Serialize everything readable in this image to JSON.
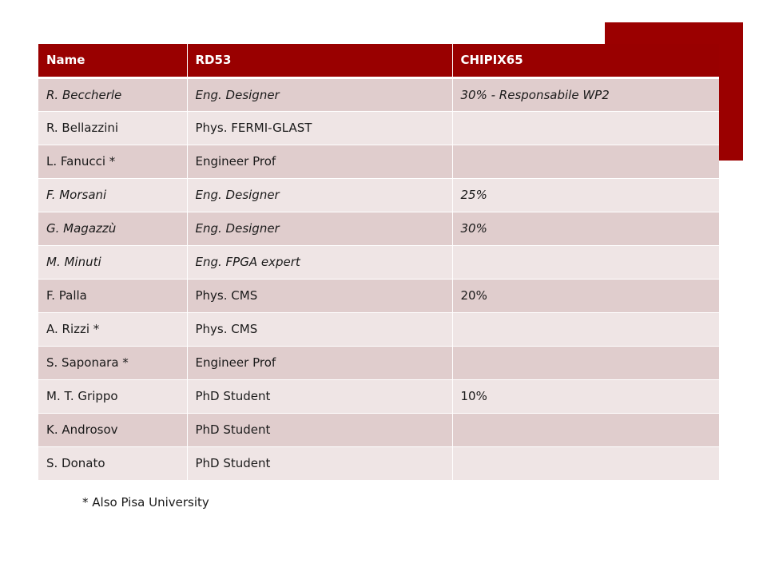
{
  "colors": {
    "header_bg": "#990000",
    "row_odd": "#e0cdcd",
    "row_even": "#efe5e5",
    "accent_block": "#9b0000"
  },
  "table": {
    "headers": [
      "Name",
      "RD53",
      "CHIPIX65"
    ],
    "rows": [
      {
        "cells": [
          "R. Beccherle",
          "Eng. Designer",
          "30% - Responsabile WP2"
        ],
        "italic": true
      },
      {
        "cells": [
          "R. Bellazzini",
          "Phys. FERMI-GLAST",
          ""
        ],
        "italic": false
      },
      {
        "cells": [
          "L. Fanucci *",
          "Engineer Prof",
          ""
        ],
        "italic": false
      },
      {
        "cells": [
          "F. Morsani",
          "Eng. Designer",
          "25%"
        ],
        "italic": true
      },
      {
        "cells": [
          "G. Magazzù",
          "Eng. Designer",
          "30%"
        ],
        "italic": true
      },
      {
        "cells": [
          "M. Minuti",
          "Eng. FPGA expert",
          ""
        ],
        "italic": true
      },
      {
        "cells": [
          "F. Palla",
          "Phys. CMS",
          "20%"
        ],
        "italic": false
      },
      {
        "cells": [
          "A. Rizzi *",
          "Phys. CMS",
          ""
        ],
        "italic": false
      },
      {
        "cells": [
          "S. Saponara *",
          "Engineer Prof",
          ""
        ],
        "italic": false
      },
      {
        "cells": [
          "M. T. Grippo",
          "PhD Student",
          "10%"
        ],
        "italic": false
      },
      {
        "cells": [
          "K. Androsov",
          "PhD Student",
          ""
        ],
        "italic": false
      },
      {
        "cells": [
          "S. Donato",
          "PhD Student",
          ""
        ],
        "italic": false
      }
    ]
  },
  "footnote": "* Also Pisa University"
}
